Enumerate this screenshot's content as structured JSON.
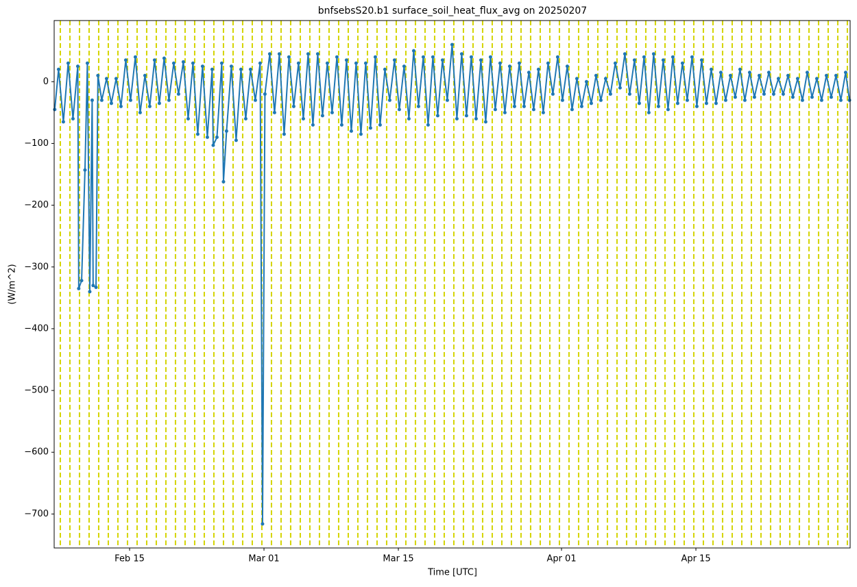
{
  "chart_data": {
    "type": "line",
    "title": "bnfsebsS20.b1 surface_soil_heat_flux_avg on 20250207",
    "xlabel": "Time [UTC]",
    "ylabel": "(W/m^2)",
    "color": "#1f77b4",
    "vline_color": "#d4d400",
    "xlim": [
      38.14,
      121.07
    ],
    "ylim": [
      -755,
      99
    ],
    "xticks": [
      {
        "value": 46,
        "label": "Feb 15"
      },
      {
        "value": 60,
        "label": "Mar 01"
      },
      {
        "value": 74,
        "label": "Mar 15"
      },
      {
        "value": 91,
        "label": "Apr 01"
      },
      {
        "value": 105,
        "label": "Apr 15"
      }
    ],
    "yticks": [
      {
        "value": -700,
        "label": "−700"
      },
      {
        "value": -600,
        "label": "−600"
      },
      {
        "value": -500,
        "label": "−500"
      },
      {
        "value": -400,
        "label": "−400"
      },
      {
        "value": -300,
        "label": "−300"
      },
      {
        "value": -200,
        "label": "−200"
      },
      {
        "value": -100,
        "label": "−100"
      },
      0
    ],
    "vlines": [
      38.78,
      39.78,
      40.78,
      41.78,
      42.78,
      43.78,
      44.78,
      45.78,
      46.78,
      47.78,
      48.78,
      49.78,
      50.78,
      51.78,
      52.78,
      53.78,
      54.78,
      55.78,
      56.78,
      57.78,
      58.78,
      59.78,
      60.78,
      61.78,
      62.78,
      63.78,
      64.78,
      65.78,
      66.78,
      67.78,
      68.78,
      69.78,
      70.78,
      71.78,
      72.78,
      73.78,
      74.78,
      75.78,
      76.78,
      77.78,
      78.78,
      79.78,
      80.78,
      81.78,
      82.78,
      83.78,
      84.78,
      85.78,
      86.78,
      87.78,
      88.78,
      89.78,
      90.78,
      91.78,
      92.78,
      93.78,
      94.78,
      95.78,
      96.78,
      97.78,
      98.78,
      99.78,
      100.78,
      101.78,
      102.78,
      103.78,
      104.78,
      105.78,
      106.78,
      107.78,
      108.78,
      109.78,
      110.78,
      111.78,
      112.78,
      113.78,
      114.78,
      115.78,
      116.78,
      117.78,
      118.78,
      119.78,
      120.78
    ],
    "x": [
      38.2,
      38.6,
      39.1,
      39.6,
      40.1,
      40.6,
      40.7,
      41.0,
      41.35,
      41.6,
      41.85,
      42.1,
      42.2,
      42.5,
      42.7,
      43.1,
      43.6,
      44.1,
      44.6,
      45.1,
      45.6,
      46.1,
      46.6,
      47.1,
      47.6,
      48.1,
      48.6,
      49.1,
      49.6,
      50.1,
      50.6,
      51.1,
      51.6,
      52.1,
      52.6,
      53.1,
      53.6,
      54.1,
      54.6,
      54.71,
      55.1,
      55.6,
      55.78,
      56.1,
      56.6,
      57.1,
      57.6,
      58.1,
      58.6,
      59.1,
      59.6,
      59.85,
      60.1,
      60.6,
      61.1,
      61.6,
      62.1,
      62.6,
      63.1,
      63.6,
      64.1,
      64.6,
      65.1,
      65.6,
      66.1,
      66.6,
      67.1,
      67.6,
      68.1,
      68.6,
      69.1,
      69.6,
      70.1,
      70.6,
      71.1,
      71.6,
      72.1,
      72.6,
      73.1,
      73.6,
      74.1,
      74.6,
      75.1,
      75.6,
      76.1,
      76.6,
      77.1,
      77.6,
      78.1,
      78.6,
      79.1,
      79.6,
      80.1,
      80.6,
      81.1,
      81.6,
      82.1,
      82.6,
      83.1,
      83.6,
      84.1,
      84.6,
      85.1,
      85.6,
      86.1,
      86.6,
      87.1,
      87.6,
      88.1,
      88.6,
      89.1,
      89.6,
      90.1,
      90.6,
      91.1,
      91.6,
      92.1,
      92.6,
      93.1,
      93.6,
      94.1,
      94.6,
      95.1,
      95.6,
      96.1,
      96.6,
      97.1,
      97.6,
      98.1,
      98.6,
      99.1,
      99.6,
      100.1,
      100.6,
      101.1,
      101.6,
      102.1,
      102.6,
      103.1,
      103.6,
      104.1,
      104.6,
      105.1,
      105.6,
      106.1,
      106.6,
      107.1,
      107.6,
      108.1,
      108.6,
      109.1,
      109.6,
      110.1,
      110.6,
      111.1,
      111.6,
      112.1,
      112.6,
      113.1,
      113.6,
      114.1,
      114.6,
      115.1,
      115.6,
      116.1,
      116.6,
      117.1,
      117.6,
      118.1,
      118.6,
      119.1,
      119.6,
      120.1,
      120.6,
      121.0
    ],
    "values": [
      -45,
      20,
      -65,
      30,
      -60,
      25,
      -335,
      -322,
      -143,
      30,
      -340,
      -30,
      -330,
      -333,
      10,
      -30,
      5,
      -35,
      5,
      -40,
      35,
      -30,
      40,
      -50,
      10,
      -40,
      35,
      -35,
      38,
      -30,
      30,
      -20,
      32,
      -60,
      30,
      -85,
      25,
      -90,
      20,
      -103,
      -90,
      30,
      -162,
      -80,
      25,
      -95,
      20,
      -60,
      20,
      -30,
      30,
      -716,
      -20,
      45,
      -50,
      45,
      -85,
      40,
      -40,
      30,
      -60,
      45,
      -70,
      45,
      -55,
      30,
      -50,
      40,
      -70,
      35,
      -80,
      30,
      -85,
      30,
      -75,
      40,
      -70,
      20,
      -30,
      35,
      -45,
      25,
      -60,
      50,
      -40,
      40,
      -70,
      40,
      -55,
      35,
      -30,
      60,
      -60,
      45,
      -55,
      40,
      -60,
      35,
      -65,
      40,
      -45,
      30,
      -50,
      25,
      -40,
      30,
      -40,
      15,
      -45,
      20,
      -50,
      30,
      -20,
      40,
      -30,
      25,
      -45,
      5,
      -40,
      0,
      -35,
      10,
      -30,
      5,
      -20,
      30,
      -10,
      45,
      -20,
      35,
      -35,
      40,
      -50,
      45,
      -40,
      35,
      -45,
      40,
      -35,
      30,
      -30,
      40,
      -40,
      35,
      -35,
      20,
      -35,
      15,
      -30,
      10,
      -25,
      20,
      -30,
      15,
      -25,
      10,
      -20,
      15,
      -20,
      5,
      -20,
      10,
      -25,
      5,
      -30,
      15,
      -25,
      5,
      -30,
      10,
      -25,
      10,
      -30,
      15,
      -30
    ]
  }
}
